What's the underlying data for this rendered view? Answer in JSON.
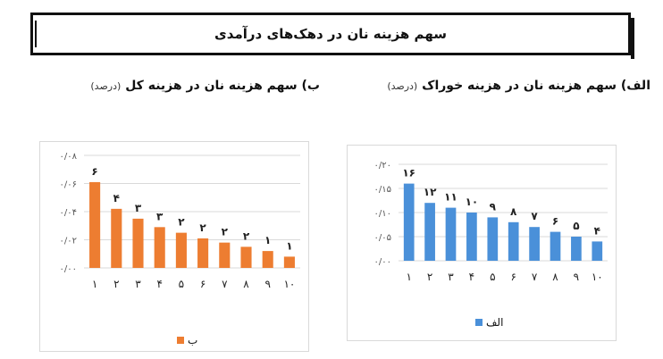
{
  "header": {
    "title": "سهم هزینه نان در دهک‌های درآمدی"
  },
  "chart_data": [
    {
      "id": "a",
      "type": "bar",
      "title": "الف) سهم هزینه نان در هزینه خوراک",
      "unit": "(درصد)",
      "categories": [
        "۱",
        "۲",
        "۳",
        "۴",
        "۵",
        "۶",
        "۷",
        "۸",
        "۹",
        "۱۰"
      ],
      "values": [
        0.16,
        0.12,
        0.11,
        0.1,
        0.09,
        0.08,
        0.07,
        0.06,
        0.05,
        0.04
      ],
      "data_labels": [
        "۱۶",
        "۱۲",
        "۱۱",
        "۱۰",
        "۹",
        "۸",
        "۷",
        "۶",
        "۵",
        "۴"
      ],
      "yticks": [
        0,
        0.05,
        0.1,
        0.15,
        0.2
      ],
      "ytick_labels": [
        "۰/۰۰",
        "۰/۰۵",
        "۰/۱۰",
        "۰/۱۵",
        "۰/۲۰"
      ],
      "ylim": [
        0,
        0.2
      ],
      "grid": true,
      "legend": {
        "label": "الف",
        "position": "bottom"
      },
      "color": "#4a90d9"
    },
    {
      "id": "b",
      "type": "bar",
      "title": "ب) سهم هزینه نان در هزینه کل",
      "unit": "(درصد)",
      "categories": [
        "۱",
        "۲",
        "۳",
        "۴",
        "۵",
        "۶",
        "۷",
        "۸",
        "۹",
        "۱۰"
      ],
      "values": [
        0.061,
        0.042,
        0.035,
        0.029,
        0.025,
        0.021,
        0.018,
        0.015,
        0.012,
        0.008
      ],
      "data_labels": [
        "۶",
        "۴",
        "۳",
        "۳",
        "۲",
        "۲",
        "۲",
        "۲",
        "۱",
        "۱"
      ],
      "yticks": [
        0,
        0.02,
        0.04,
        0.06,
        0.08
      ],
      "ytick_labels": [
        "۰/۰۰",
        "۰/۰۲",
        "۰/۰۴",
        "۰/۰۶",
        "۰/۰۸"
      ],
      "ylim": [
        0,
        0.08
      ],
      "grid": true,
      "legend": {
        "label": "ب",
        "position": "bottom"
      },
      "color": "#ed7d31"
    }
  ]
}
